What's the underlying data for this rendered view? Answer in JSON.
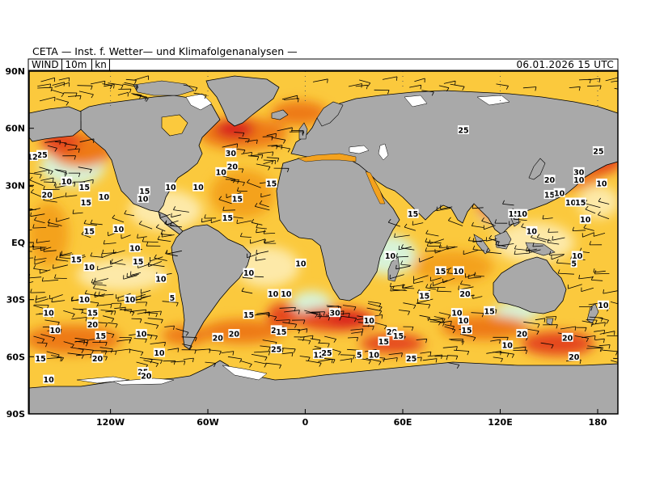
{
  "header": {
    "title": "CETA — Inst. f. Wetter— und Klimafolgenanalysen —"
  },
  "info": {
    "variable": "WIND",
    "level": "10m",
    "unit": "kn",
    "valid_time": "06.01.2026 15 UTC"
  },
  "axes": {
    "lat_labels": [
      "90N",
      "60N",
      "30N",
      "EQ",
      "30S",
      "60S",
      "90S"
    ],
    "lon_labels": [
      "120W",
      "60W",
      "0",
      "60E",
      "120E",
      "180"
    ]
  },
  "colors": {
    "land": "#a9a9a9",
    "ice": "#ffffff",
    "wind_0_5": "#d8f3d8",
    "wind_5_10": "#fde9a8",
    "wind_10_15": "#fbc93d",
    "wind_15_20": "#f4a21e",
    "wind_20_25": "#ee7a16",
    "wind_25_30": "#e5471c",
    "wind_30_plus": "#d81e1e",
    "barb": "#000000"
  },
  "wind_labels": [
    {
      "text": "25",
      "lon": 97,
      "lat": 59
    },
    {
      "text": "30",
      "lon": -46,
      "lat": 47
    },
    {
      "text": "20",
      "lon": -45,
      "lat": 40
    },
    {
      "text": "10",
      "lon": -52,
      "lat": 37
    },
    {
      "text": "15",
      "lon": -21,
      "lat": 31
    },
    {
      "text": "10",
      "lon": -83,
      "lat": 29
    },
    {
      "text": "15",
      "lon": -99,
      "lat": 27
    },
    {
      "text": "10",
      "lon": -66,
      "lat": 29
    },
    {
      "text": "15",
      "lon": -42,
      "lat": 23
    },
    {
      "text": "10",
      "lon": -100,
      "lat": 23
    },
    {
      "text": "15",
      "lon": -48,
      "lat": 13
    },
    {
      "text": "25",
      "lon": -162,
      "lat": 46
    },
    {
      "text": "12",
      "lon": -168,
      "lat": 45
    },
    {
      "text": "20",
      "lon": -159,
      "lat": 25
    },
    {
      "text": "10",
      "lon": -147,
      "lat": 32
    },
    {
      "text": "15",
      "lon": -136,
      "lat": 29
    },
    {
      "text": "10",
      "lon": -124,
      "lat": 24
    },
    {
      "text": "15",
      "lon": -135,
      "lat": 21
    },
    {
      "text": "15",
      "lon": -133,
      "lat": 6
    },
    {
      "text": "10",
      "lon": -115,
      "lat": 7
    },
    {
      "text": "15",
      "lon": -174,
      "lat": 3
    },
    {
      "text": "10",
      "lon": -105,
      "lat": -3
    },
    {
      "text": "15",
      "lon": -141,
      "lat": -9
    },
    {
      "text": "15",
      "lon": -103,
      "lat": -10
    },
    {
      "text": "10",
      "lon": -133,
      "lat": -13
    },
    {
      "text": "10",
      "lon": -89,
      "lat": -19
    },
    {
      "text": "10",
      "lon": -136,
      "lat": -30
    },
    {
      "text": "10",
      "lon": -108,
      "lat": -30
    },
    {
      "text": "5",
      "lon": -82,
      "lat": -29
    },
    {
      "text": "10",
      "lon": -158,
      "lat": -37
    },
    {
      "text": "15",
      "lon": -131,
      "lat": -37
    },
    {
      "text": "20",
      "lon": -131,
      "lat": -43
    },
    {
      "text": "10",
      "lon": -154,
      "lat": -46
    },
    {
      "text": "15",
      "lon": -126,
      "lat": -49
    },
    {
      "text": "10",
      "lon": -101,
      "lat": -48
    },
    {
      "text": "15",
      "lon": -163,
      "lat": -61
    },
    {
      "text": "10",
      "lon": -90,
      "lat": -58
    },
    {
      "text": "20",
      "lon": -128,
      "lat": -61
    },
    {
      "text": "25",
      "lon": -100,
      "lat": -68
    },
    {
      "text": "20",
      "lon": -98,
      "lat": -70
    },
    {
      "text": "10",
      "lon": -158,
      "lat": -72
    },
    {
      "text": "20",
      "lon": -54,
      "lat": -50
    },
    {
      "text": "20",
      "lon": -44,
      "lat": -48
    },
    {
      "text": "15",
      "lon": -35,
      "lat": -38
    },
    {
      "text": "20",
      "lon": -18,
      "lat": -46
    },
    {
      "text": "15",
      "lon": -15,
      "lat": -47
    },
    {
      "text": "25",
      "lon": -18,
      "lat": -56
    },
    {
      "text": "10",
      "lon": -20,
      "lat": -27
    },
    {
      "text": "10",
      "lon": -12,
      "lat": -27
    },
    {
      "text": "10",
      "lon": -35,
      "lat": -16
    },
    {
      "text": "10",
      "lon": -3,
      "lat": -11
    },
    {
      "text": "30",
      "lon": 18,
      "lat": -37
    },
    {
      "text": "10",
      "lon": 39,
      "lat": -41
    },
    {
      "text": "20",
      "lon": 53,
      "lat": -47
    },
    {
      "text": "15",
      "lon": 57,
      "lat": -49
    },
    {
      "text": "15",
      "lon": 48,
      "lat": -52
    },
    {
      "text": "12",
      "lon": 8,
      "lat": -59
    },
    {
      "text": "25",
      "lon": 13,
      "lat": -58
    },
    {
      "text": "5",
      "lon": 33,
      "lat": -59
    },
    {
      "text": "10",
      "lon": 42,
      "lat": -59
    },
    {
      "text": "25",
      "lon": 65,
      "lat": -61
    },
    {
      "text": "15",
      "lon": 66,
      "lat": 15
    },
    {
      "text": "10",
      "lon": 52,
      "lat": -7
    },
    {
      "text": "15",
      "lon": 83,
      "lat": -15
    },
    {
      "text": "10",
      "lon": 94,
      "lat": -15
    },
    {
      "text": "20",
      "lon": 98,
      "lat": -27
    },
    {
      "text": "15",
      "lon": 73,
      "lat": -28
    },
    {
      "text": "10",
      "lon": 93,
      "lat": -37
    },
    {
      "text": "15",
      "lon": 113,
      "lat": -36
    },
    {
      "text": "15",
      "lon": 99,
      "lat": -46
    },
    {
      "text": "10",
      "lon": 97,
      "lat": -41
    },
    {
      "text": "20",
      "lon": 133,
      "lat": -48
    },
    {
      "text": "10",
      "lon": 124,
      "lat": -54
    },
    {
      "text": "20",
      "lon": 161,
      "lat": -50
    },
    {
      "text": "20",
      "lon": 165,
      "lat": -60
    },
    {
      "text": "10",
      "lon": 183,
      "lat": -33
    },
    {
      "text": "10",
      "lon": 167,
      "lat": -7
    },
    {
      "text": "5",
      "lon": 165,
      "lat": -11
    },
    {
      "text": "10",
      "lon": 139,
      "lat": 6
    },
    {
      "text": "15",
      "lon": 128,
      "lat": 15
    },
    {
      "text": "10",
      "lon": 133,
      "lat": 15
    },
    {
      "text": "10",
      "lon": 172,
      "lat": 12
    },
    {
      "text": "15",
      "lon": 150,
      "lat": 25
    },
    {
      "text": "20",
      "lon": 150,
      "lat": 33
    },
    {
      "text": "10",
      "lon": 156,
      "lat": 26
    },
    {
      "text": "30",
      "lon": 168,
      "lat": 37
    },
    {
      "text": "10",
      "lon": 168,
      "lat": 33
    },
    {
      "text": "10",
      "lon": 182,
      "lat": 31
    },
    {
      "text": "25",
      "lon": 180,
      "lat": 48
    },
    {
      "text": "10",
      "lon": 163,
      "lat": 21
    },
    {
      "text": "15",
      "lon": 169,
      "lat": 21
    }
  ]
}
